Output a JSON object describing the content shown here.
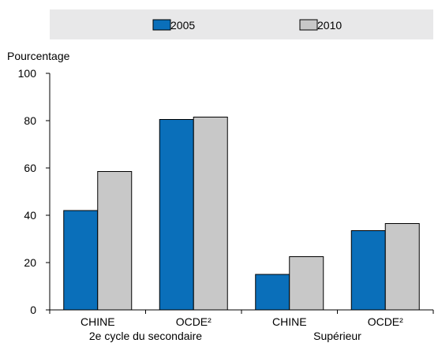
{
  "chart_data": {
    "type": "bar",
    "ylabel": "Pourcentage",
    "ylim": [
      0,
      100
    ],
    "yticks": [
      0,
      20,
      40,
      60,
      80,
      100
    ],
    "grid": false,
    "legend_position": "top",
    "categories": [
      "CHINE",
      "OCDE²",
      "CHINE",
      "OCDE²"
    ],
    "groups": [
      {
        "label": "2e cycle du secondaire",
        "category_indices": [
          0,
          1
        ]
      },
      {
        "label": "Supérieur",
        "category_indices": [
          2,
          3
        ]
      }
    ],
    "series": [
      {
        "name": "2005",
        "color": "#0a6fba",
        "values": [
          42,
          80.5,
          15,
          33.5
        ]
      },
      {
        "name": "2010",
        "color": "#c8c8c8",
        "values": [
          58.5,
          81.5,
          22.5,
          36.5
        ]
      }
    ]
  }
}
